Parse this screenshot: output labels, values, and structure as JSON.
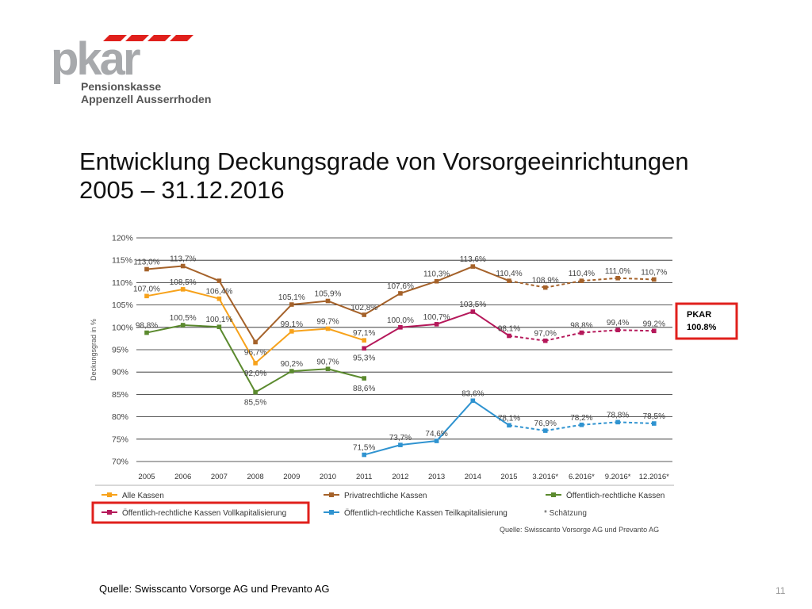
{
  "logo": {
    "wordmark": "pkar",
    "name_line1": "Pensionskasse",
    "name_line2": "Appenzell Ausserrhoden"
  },
  "title": {
    "line1": "Entwicklung Deckungsgrade von Vorsorgeeinrichtungen",
    "line2": "2005 – 31.12.2016"
  },
  "callout": {
    "line1": "PKAR",
    "line2": "100.8%",
    "border_color": "#e0201c"
  },
  "footer": {
    "source": "Quelle: Swisscanto Vorsorge AG und Prevanto AG",
    "page_number": "11"
  },
  "chart_data": {
    "type": "line",
    "ylabel": "Deckungsgrad in %",
    "ylim": [
      70,
      120
    ],
    "y_ticks": [
      70,
      75,
      80,
      85,
      90,
      95,
      100,
      105,
      110,
      115,
      120
    ],
    "y_tick_labels": [
      "70%",
      "75%",
      "80%",
      "85%",
      "90%",
      "95%",
      "100%",
      "105%",
      "110%",
      "115%",
      "120%"
    ],
    "categories": [
      "2005",
      "2006",
      "2007",
      "2008",
      "2009",
      "2010",
      "2011",
      "2012",
      "2013",
      "2014",
      "2015",
      "3.2016*",
      "6.2016*",
      "9.2016*",
      "12.2016*"
    ],
    "estimate_from_index": 10,
    "series": [
      {
        "name": "Alle Kassen",
        "color": "#f7a21b",
        "values": [
          107.0,
          108.5,
          106.4,
          92.0,
          99.1,
          99.7,
          97.1,
          null,
          null,
          null,
          null,
          null,
          null,
          null,
          null
        ],
        "labels": [
          "107,0%",
          "108,5%",
          "106,4%",
          "92,0%",
          "99,1%",
          "99,7%",
          "97,1%",
          null,
          null,
          null,
          null,
          null,
          null,
          null,
          null
        ]
      },
      {
        "name": "Privatrechtliche Kassen",
        "color": "#a5622a",
        "values": [
          113.0,
          113.7,
          110.4,
          96.7,
          105.1,
          105.9,
          102.8,
          107.6,
          110.3,
          113.6,
          110.4,
          108.9,
          110.4,
          111.0,
          110.7
        ],
        "labels": [
          "113,0%",
          "113,7%",
          null,
          "96,7%",
          "105,1%",
          "105,9%",
          "102,8%",
          "107,6%",
          "110,3%",
          "113,6%",
          "110,4%",
          "108,9%",
          "110,4%",
          "111,0%",
          "110,7%"
        ]
      },
      {
        "name": "Öffentlich-rechtliche Kassen",
        "color": "#5b8a2e",
        "values": [
          98.8,
          100.5,
          100.1,
          85.5,
          90.2,
          90.7,
          88.6,
          null,
          null,
          null,
          null,
          null,
          null,
          null,
          null
        ],
        "labels": [
          "98,8%",
          "100,5%",
          "100,1%",
          "85,5%",
          "90,2%",
          "90,7%",
          "88,6%",
          null,
          null,
          null,
          null,
          null,
          null,
          null,
          null
        ]
      },
      {
        "name": "Öffentlich-rechtliche Kassen Vollkapitalisierung",
        "color": "#b5185a",
        "values": [
          null,
          null,
          null,
          null,
          null,
          null,
          95.3,
          100.0,
          100.7,
          103.5,
          98.1,
          97.0,
          98.8,
          99.4,
          99.2
        ],
        "labels": [
          null,
          null,
          null,
          null,
          null,
          null,
          "95,3%",
          "100,0%",
          "100,7%",
          "103,5%",
          "98,1%",
          "97,0%",
          "98,8%",
          "99,4%",
          "99,2%"
        ]
      },
      {
        "name": "Öffentlich-rechtliche Kassen Teilkapitalisierung",
        "color": "#2f93d0",
        "values": [
          null,
          null,
          null,
          null,
          null,
          null,
          71.5,
          73.7,
          74.6,
          83.6,
          78.1,
          76.9,
          78.2,
          78.8,
          78.5
        ],
        "labels": [
          null,
          null,
          null,
          null,
          null,
          null,
          "71,5%",
          "73,7%",
          "74,6%",
          "83,6%",
          "78,1%",
          "76,9%",
          "78,2%",
          "78,8%",
          "78,5%"
        ]
      }
    ],
    "legend": {
      "items": [
        "Alle Kassen",
        "Privatrechtliche Kassen",
        "Öffentlich-rechtliche Kassen",
        "Öffentlich-rechtliche Kassen Vollkapitalisierung",
        "Öffentlich-rechtliche Kassen Teilkapitalisierung"
      ],
      "estimate_note": "* Schätzung",
      "highlighted_index": 3
    },
    "source_note": "Quelle: Swisscanto Vorsorge AG und Prevanto AG"
  }
}
